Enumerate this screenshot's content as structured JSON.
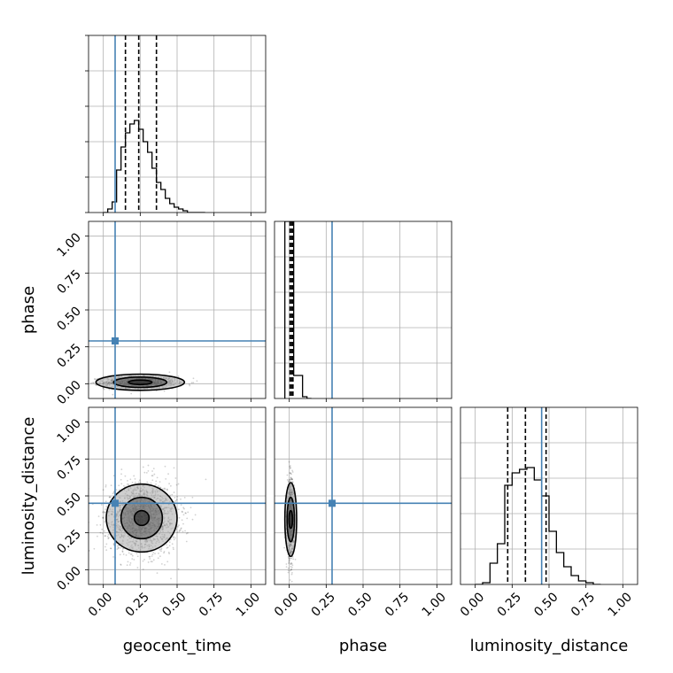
{
  "chart_data": {
    "type": "corner",
    "title": "",
    "parameters": [
      "geocent_time",
      "phase",
      "luminosity_distance"
    ],
    "axis_range": [
      -0.1,
      1.1
    ],
    "ticks": [
      0.0,
      0.25,
      0.5,
      0.75,
      1.0
    ],
    "tick_labels": [
      "0.00",
      "0.25",
      "0.50",
      "0.75",
      "1.00"
    ],
    "grid": true,
    "truth": {
      "geocent_time": 0.08,
      "phase": 0.29,
      "luminosity_distance": 0.45
    },
    "truth_color": "#4682b4",
    "histogram_color": "#000000",
    "histograms": [
      {
        "parameter": "geocent_time",
        "bin_edges": [
          0.0,
          0.03,
          0.06,
          0.09,
          0.12,
          0.15,
          0.18,
          0.21,
          0.24,
          0.27,
          0.3,
          0.33,
          0.36,
          0.39,
          0.42,
          0.45,
          0.48,
          0.51,
          0.54,
          0.57,
          0.6,
          0.63,
          0.66,
          0.69
        ],
        "counts": [
          0.0,
          0.02,
          0.06,
          0.24,
          0.37,
          0.45,
          0.5,
          0.52,
          0.47,
          0.4,
          0.34,
          0.25,
          0.17,
          0.13,
          0.08,
          0.05,
          0.03,
          0.02,
          0.01,
          0.0,
          0.0,
          0.0,
          0.0
        ],
        "quantiles": [
          0.15,
          0.24,
          0.36
        ]
      },
      {
        "parameter": "phase",
        "bin_edges": [
          -0.03,
          0.0,
          0.03,
          0.06,
          0.09,
          0.12,
          0.15
        ],
        "counts": [
          1.0,
          1.0,
          0.13,
          0.13,
          0.01,
          0.0
        ],
        "quantiles": [
          0.005,
          0.015,
          0.025
        ]
      },
      {
        "parameter": "luminosity_distance",
        "bin_edges": [
          0.0,
          0.05,
          0.1,
          0.15,
          0.2,
          0.25,
          0.3,
          0.35,
          0.4,
          0.45,
          0.5,
          0.55,
          0.6,
          0.65,
          0.7,
          0.75,
          0.8,
          0.85
        ],
        "counts": [
          0.0,
          0.01,
          0.12,
          0.23,
          0.56,
          0.63,
          0.65,
          0.66,
          0.59,
          0.5,
          0.3,
          0.18,
          0.1,
          0.05,
          0.02,
          0.01,
          0.0
        ],
        "quantiles": [
          0.22,
          0.34,
          0.48
        ]
      }
    ],
    "scatter_panels": [
      {
        "x": "geocent_time",
        "y": "phase",
        "center": [
          0.25,
          0.01
        ],
        "spread": [
          0.12,
          0.02
        ],
        "sample_count": 1400,
        "contour_radii": [
          [
            0.08,
            0.015
          ],
          [
            0.18,
            0.035
          ],
          [
            0.3,
            0.055
          ]
        ]
      },
      {
        "x": "geocent_time",
        "y": "luminosity_distance",
        "center": [
          0.26,
          0.35
        ],
        "spread": [
          0.12,
          0.12
        ],
        "sample_count": 1600,
        "contour_radii": [
          [
            0.05,
            0.05
          ],
          [
            0.14,
            0.14
          ],
          [
            0.24,
            0.23
          ]
        ]
      },
      {
        "x": "phase",
        "y": "luminosity_distance",
        "center": [
          0.01,
          0.34
        ],
        "spread": [
          0.012,
          0.13
        ],
        "sample_count": 1000,
        "contour_radii": [
          [
            0.012,
            0.06
          ],
          [
            0.025,
            0.15
          ],
          [
            0.04,
            0.25
          ]
        ]
      }
    ]
  }
}
